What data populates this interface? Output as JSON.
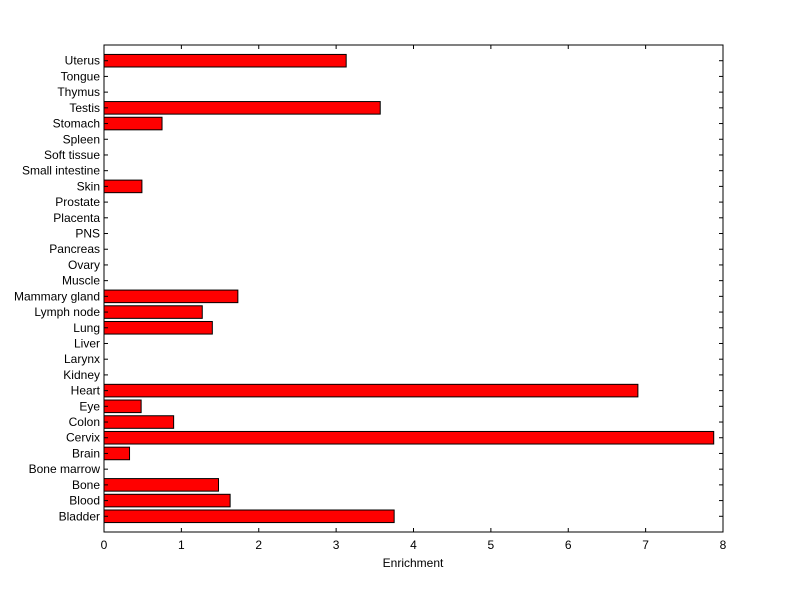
{
  "chart_data": {
    "type": "bar",
    "orientation": "horizontal",
    "categories": [
      "Bladder",
      "Blood",
      "Bone",
      "Bone marrow",
      "Brain",
      "Cervix",
      "Colon",
      "Eye",
      "Heart",
      "Kidney",
      "Larynx",
      "Liver",
      "Lung",
      "Lymph node",
      "Mammary gland",
      "Muscle",
      "Ovary",
      "Pancreas",
      "PNS",
      "Placenta",
      "Prostate",
      "Skin",
      "Small intestine",
      "Soft tissue",
      "Spleen",
      "Stomach",
      "Testis",
      "Thymus",
      "Tongue",
      "Uterus"
    ],
    "values": [
      3.75,
      1.63,
      1.48,
      0,
      0.33,
      7.88,
      0.9,
      0.48,
      6.9,
      0,
      0,
      0,
      1.4,
      1.27,
      1.73,
      0,
      0,
      0,
      0,
      0,
      0,
      0.49,
      0,
      0,
      0,
      0.75,
      3.57,
      0,
      0,
      3.13
    ],
    "xlabel": "Enrichment",
    "ylabel": "",
    "title": "",
    "xlim": [
      0,
      8
    ],
    "xticks": [
      "0",
      "1",
      "2",
      "3",
      "4",
      "5",
      "6",
      "7",
      "8"
    ],
    "grid": false,
    "bar_color": "#ff0000"
  }
}
